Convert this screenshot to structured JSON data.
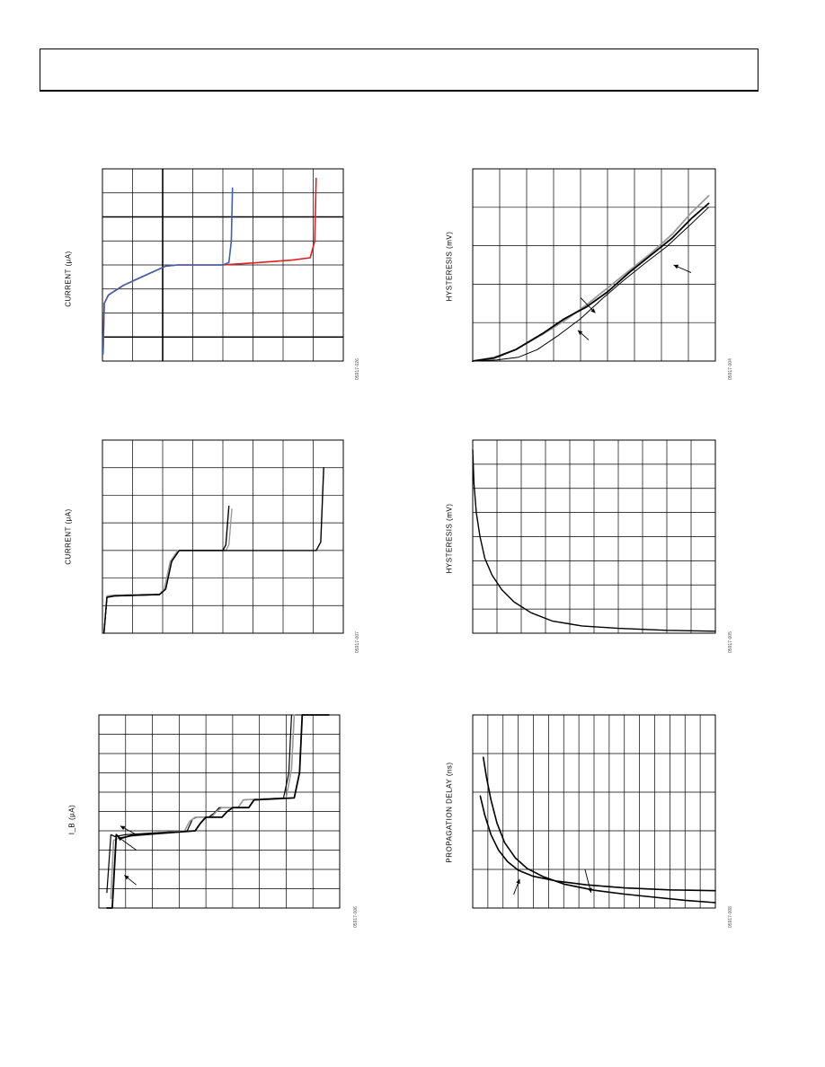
{
  "page": {
    "header": ""
  },
  "chart_data": [
    {
      "id": "c1",
      "type": "line",
      "title": "",
      "ylabel": "CURRENT (µA)",
      "figure_id": "05917-026",
      "grid": true,
      "xlim": [
        0,
        8
      ],
      "ylim": [
        0,
        8
      ],
      "xgrid": 8,
      "ygrid": 8,
      "heavy_x": [
        2
      ],
      "heavy_y": [
        1,
        6
      ],
      "series": [
        {
          "color": "#e02020",
          "width": 1.6,
          "points": [
            [
              0.02,
              0.3
            ],
            [
              0.06,
              2.4
            ],
            [
              0.2,
              2.75
            ],
            [
              0.7,
              3.15
            ],
            [
              1.3,
              3.5
            ],
            [
              2.1,
              3.95
            ],
            [
              2.5,
              4.0
            ],
            [
              4.0,
              4.0
            ],
            [
              5.2,
              4.1
            ],
            [
              6.3,
              4.2
            ],
            [
              6.9,
              4.3
            ],
            [
              7.05,
              5.0
            ],
            [
              7.1,
              7.6
            ]
          ]
        },
        {
          "color": "#3a63b0",
          "width": 1.6,
          "points": [
            [
              0.02,
              0.3
            ],
            [
              0.06,
              2.4
            ],
            [
              0.2,
              2.75
            ],
            [
              0.7,
              3.15
            ],
            [
              1.3,
              3.5
            ],
            [
              2.1,
              3.95
            ],
            [
              2.5,
              4.0
            ],
            [
              4.0,
              4.0
            ],
            [
              4.2,
              4.1
            ],
            [
              4.28,
              5.0
            ],
            [
              4.32,
              7.2
            ]
          ]
        }
      ]
    },
    {
      "id": "c2",
      "type": "line",
      "title": "",
      "ylabel": "HYSTERESIS (mV)",
      "figure_id": "05917-004",
      "grid": true,
      "xlim": [
        0,
        9
      ],
      "ylim": [
        0,
        5
      ],
      "xgrid": 9,
      "ygrid": 5,
      "heavy_x": [],
      "heavy_y": [],
      "arrows": [
        {
          "from": [
            8.1,
            2.3
          ],
          "to": [
            7.45,
            2.5
          ]
        },
        {
          "from": [
            4.0,
            1.65
          ],
          "to": [
            4.55,
            1.25
          ]
        },
        {
          "from": [
            4.3,
            0.55
          ],
          "to": [
            3.9,
            0.8
          ]
        }
      ],
      "series": [
        {
          "color": "#999999",
          "width": 1.8,
          "points": [
            [
              0,
              0
            ],
            [
              0.8,
              0.1
            ],
            [
              1.6,
              0.3
            ],
            [
              2.6,
              0.7
            ],
            [
              3.4,
              1.05
            ],
            [
              4.2,
              1.45
            ],
            [
              5.0,
              1.9
            ],
            [
              5.8,
              2.35
            ],
            [
              6.6,
              2.8
            ],
            [
              7.4,
              3.3
            ],
            [
              8.1,
              3.85
            ],
            [
              8.75,
              4.3
            ]
          ]
        },
        {
          "color": "#000000",
          "width": 1.8,
          "points": [
            [
              0,
              0
            ],
            [
              0.8,
              0.08
            ],
            [
              1.6,
              0.3
            ],
            [
              2.6,
              0.72
            ],
            [
              3.4,
              1.1
            ],
            [
              4.2,
              1.4
            ],
            [
              5.0,
              1.8
            ],
            [
              5.8,
              2.3
            ],
            [
              6.6,
              2.75
            ],
            [
              7.4,
              3.2
            ],
            [
              8.1,
              3.7
            ],
            [
              8.75,
              4.1
            ]
          ]
        },
        {
          "color": "#000000",
          "width": 1.0,
          "points": [
            [
              0,
              0
            ],
            [
              0.9,
              0.03
            ],
            [
              1.7,
              0.1
            ],
            [
              2.4,
              0.3
            ],
            [
              3.2,
              0.68
            ],
            [
              4.0,
              1.1
            ],
            [
              4.8,
              1.62
            ],
            [
              5.6,
              2.1
            ],
            [
              6.4,
              2.55
            ],
            [
              7.2,
              2.98
            ],
            [
              8.0,
              3.5
            ],
            [
              8.75,
              4.0
            ]
          ]
        }
      ]
    },
    {
      "id": "c3",
      "type": "line",
      "title": "",
      "ylabel": "CURRENT (µA)",
      "figure_id": "05917-007",
      "grid": true,
      "xlim": [
        0,
        8
      ],
      "ylim": [
        0,
        7
      ],
      "xgrid": 8,
      "ygrid": 7,
      "heavy_x": [],
      "heavy_y": [],
      "series": [
        {
          "color": "#999999",
          "width": 1.4,
          "points": [
            [
              0.05,
              0
            ],
            [
              0.15,
              1.35
            ],
            [
              0.4,
              1.38
            ],
            [
              1.9,
              1.42
            ],
            [
              2.05,
              1.6
            ],
            [
              2.25,
              2.6
            ],
            [
              2.5,
              3.0
            ],
            [
              4.1,
              3.0
            ],
            [
              4.2,
              3.2
            ],
            [
              4.3,
              4.5
            ]
          ]
        },
        {
          "color": "#000000",
          "width": 1.4,
          "points": [
            [
              0.05,
              0
            ],
            [
              0.15,
              1.3
            ],
            [
              0.4,
              1.35
            ],
            [
              1.9,
              1.4
            ],
            [
              2.1,
              1.6
            ],
            [
              2.3,
              2.6
            ],
            [
              2.55,
              3.0
            ],
            [
              4.0,
              3.0
            ],
            [
              4.1,
              3.2
            ],
            [
              4.2,
              4.6
            ]
          ]
        },
        {
          "color": "#000000",
          "width": 1.4,
          "points": [
            [
              0.05,
              0
            ],
            [
              0.15,
              1.3
            ],
            [
              0.4,
              1.35
            ],
            [
              1.9,
              1.4
            ],
            [
              2.1,
              1.6
            ],
            [
              2.3,
              2.6
            ],
            [
              2.55,
              3.0
            ],
            [
              7.1,
              3.0
            ],
            [
              7.25,
              3.3
            ],
            [
              7.35,
              6.0
            ]
          ]
        }
      ]
    },
    {
      "id": "c4",
      "type": "line",
      "title": "",
      "ylabel": "HYSTERESIS (mV)",
      "figure_id": "05917-005",
      "grid": true,
      "xlim": [
        0,
        10
      ],
      "ylim": [
        0,
        8
      ],
      "xgrid": 10,
      "ygrid": 8,
      "heavy_x": [],
      "heavy_y": [],
      "series": [
        {
          "color": "#000000",
          "width": 1.4,
          "points": [
            [
              0.0,
              7.6
            ],
            [
              0.05,
              6.2
            ],
            [
              0.15,
              5.0
            ],
            [
              0.3,
              4.0
            ],
            [
              0.5,
              3.1
            ],
            [
              0.8,
              2.4
            ],
            [
              1.2,
              1.8
            ],
            [
              1.7,
              1.3
            ],
            [
              2.4,
              0.85
            ],
            [
              3.3,
              0.5
            ],
            [
              4.5,
              0.3
            ],
            [
              6.0,
              0.2
            ],
            [
              8.0,
              0.12
            ],
            [
              10.0,
              0.08
            ]
          ]
        }
      ]
    },
    {
      "id": "c5",
      "type": "line",
      "title": "",
      "ylabel": "I_B (µA)",
      "figure_id": "05917-006",
      "grid": true,
      "xlim": [
        0,
        9
      ],
      "ylim": [
        0,
        10
      ],
      "xgrid": 9,
      "ygrid": 10,
      "heavy_x": [],
      "heavy_y": [],
      "arrows": [
        {
          "from": [
            1.4,
            3.8
          ],
          "to": [
            0.8,
            4.25
          ]
        },
        {
          "from": [
            1.4,
            3.0
          ],
          "to": [
            0.7,
            3.7
          ]
        },
        {
          "from": [
            1.4,
            1.2
          ],
          "to": [
            0.95,
            1.7
          ]
        }
      ],
      "series": [
        {
          "color": "#000000",
          "width": 1.2,
          "points": [
            [
              0.3,
              0.8
            ],
            [
              0.45,
              3.8
            ],
            [
              0.6,
              3.7
            ],
            [
              1.0,
              3.8
            ],
            [
              3.3,
              4.0
            ],
            [
              3.5,
              4.6
            ],
            [
              3.65,
              4.7
            ],
            [
              4.1,
              4.7
            ],
            [
              4.3,
              4.9
            ],
            [
              4.5,
              5.2
            ],
            [
              5.2,
              5.2
            ],
            [
              5.4,
              5.6
            ],
            [
              6.9,
              5.7
            ],
            [
              7.1,
              7.0
            ],
            [
              7.2,
              10.0
            ]
          ]
        },
        {
          "color": "#999999",
          "width": 1.6,
          "points": [
            [
              0.45,
              0.5
            ],
            [
              0.55,
              3.5
            ],
            [
              0.7,
              3.6
            ],
            [
              1.0,
              3.7
            ],
            [
              3.2,
              4.0
            ],
            [
              3.4,
              4.5
            ],
            [
              3.6,
              4.7
            ],
            [
              4.2,
              4.7
            ],
            [
              4.4,
              5.0
            ],
            [
              4.6,
              5.2
            ],
            [
              5.2,
              5.2
            ],
            [
              5.4,
              5.6
            ],
            [
              7.0,
              5.7
            ],
            [
              7.2,
              7.2
            ],
            [
              7.3,
              10.0
            ]
          ]
        },
        {
          "color": "#000000",
          "width": 1.8,
          "points": [
            [
              0.3,
              0
            ],
            [
              0.5,
              0
            ],
            [
              0.65,
              3.8
            ],
            [
              0.8,
              3.6
            ],
            [
              1.2,
              3.75
            ],
            [
              3.6,
              4.0
            ],
            [
              3.8,
              4.4
            ],
            [
              4.0,
              4.7
            ],
            [
              4.6,
              4.7
            ],
            [
              4.8,
              5.0
            ],
            [
              5.0,
              5.2
            ],
            [
              5.6,
              5.2
            ],
            [
              5.8,
              5.6
            ],
            [
              7.3,
              5.7
            ],
            [
              7.5,
              7.0
            ],
            [
              7.6,
              10.0
            ],
            [
              8.6,
              10.0
            ]
          ]
        }
      ]
    },
    {
      "id": "c6",
      "type": "line",
      "title": "",
      "ylabel": "PROPAGATION DELAY (ns)",
      "figure_id": "05917-008",
      "grid": true,
      "xlim": [
        0,
        16
      ],
      "ylim": [
        0,
        5
      ],
      "xgrid": 16,
      "ygrid": 5,
      "heavy_x": [],
      "heavy_y": [],
      "arrows": [
        {
          "from": [
            2.7,
            0.35
          ],
          "to": [
            3.1,
            0.75
          ]
        },
        {
          "from": [
            7.4,
            1.0
          ],
          "to": [
            7.8,
            0.4
          ]
        }
      ],
      "series": [
        {
          "color": "#000000",
          "width": 1.6,
          "points": [
            [
              0.7,
              3.9
            ],
            [
              0.9,
              3.4
            ],
            [
              1.2,
              2.8
            ],
            [
              1.6,
              2.2
            ],
            [
              2.1,
              1.7
            ],
            [
              2.8,
              1.3
            ],
            [
              3.6,
              1.02
            ],
            [
              4.6,
              0.82
            ],
            [
              6.0,
              0.62
            ],
            [
              8.0,
              0.46
            ],
            [
              10.0,
              0.36
            ],
            [
              12.0,
              0.28
            ],
            [
              14.0,
              0.2
            ],
            [
              16.0,
              0.14
            ]
          ]
        },
        {
          "color": "#000000",
          "width": 1.6,
          "points": [
            [
              0.5,
              2.9
            ],
            [
              0.8,
              2.4
            ],
            [
              1.2,
              1.9
            ],
            [
              1.7,
              1.5
            ],
            [
              2.3,
              1.2
            ],
            [
              3.0,
              0.98
            ],
            [
              4.0,
              0.82
            ],
            [
              5.5,
              0.7
            ],
            [
              7.5,
              0.6
            ],
            [
              10.0,
              0.52
            ],
            [
              13.0,
              0.47
            ],
            [
              16.0,
              0.45
            ]
          ]
        }
      ]
    }
  ]
}
